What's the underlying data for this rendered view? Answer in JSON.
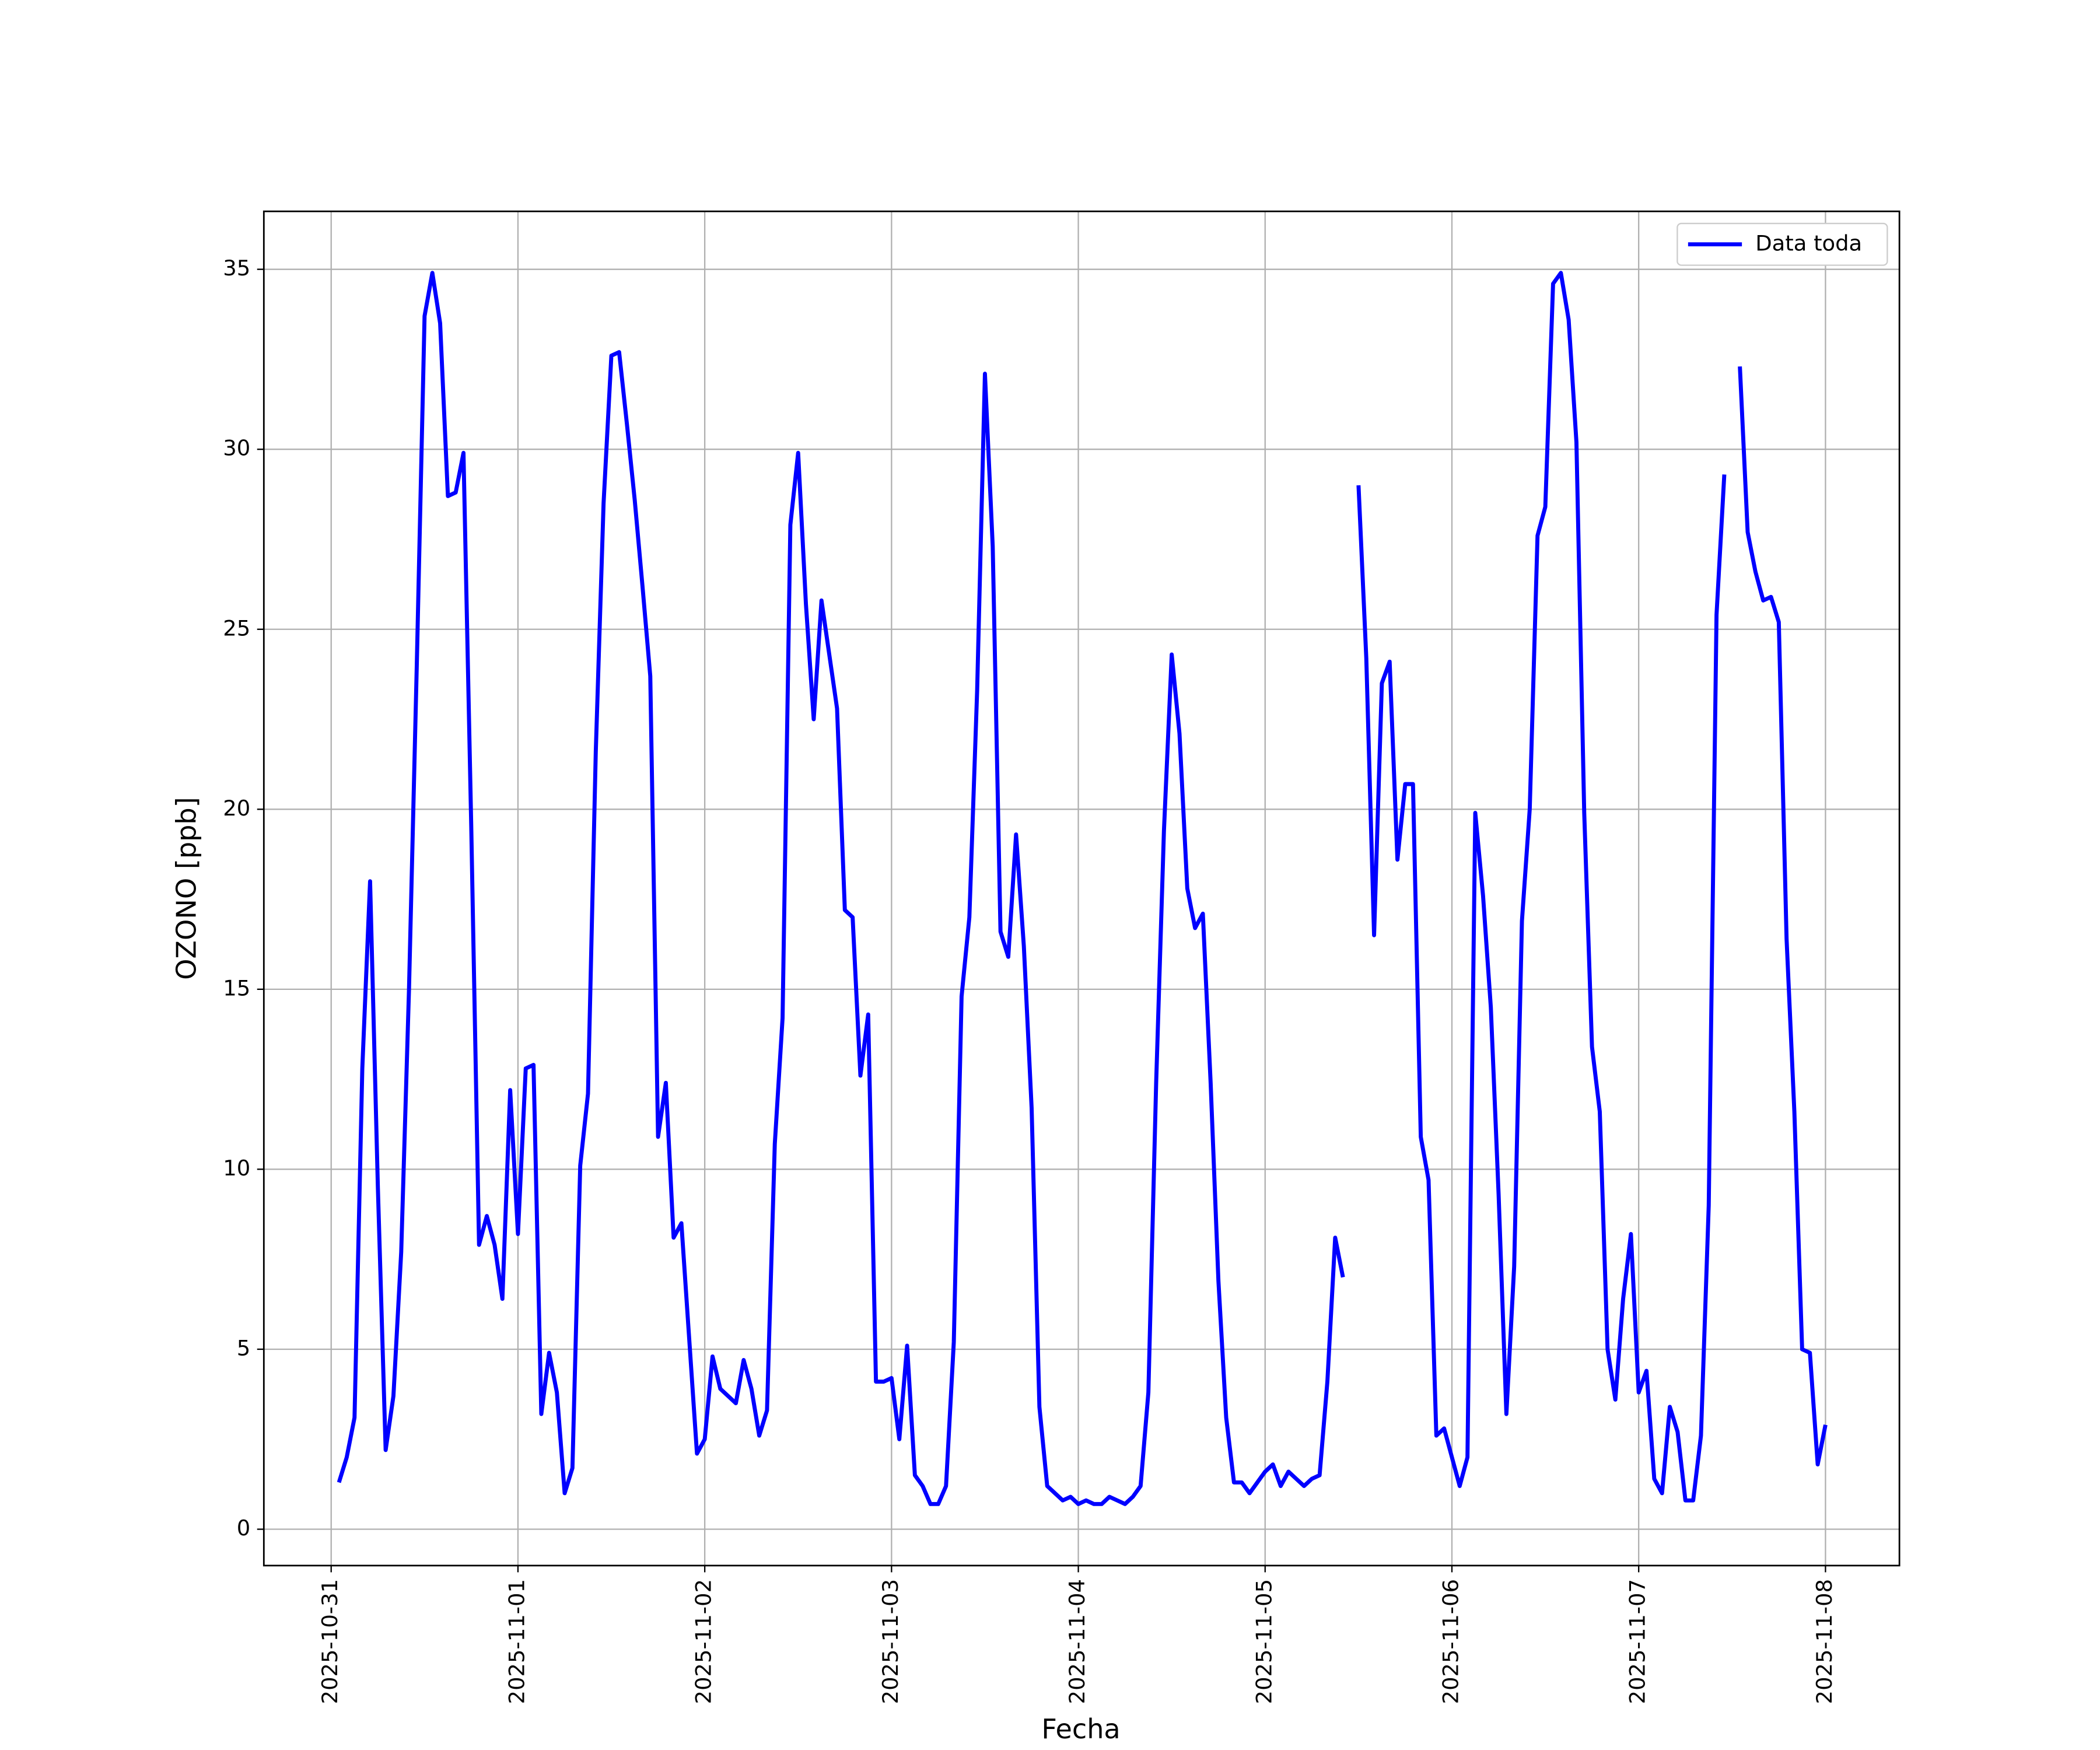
{
  "chart_data": {
    "type": "line",
    "x_label": "Fecha",
    "y_label": "OZONO [ppb]",
    "x": [
      1,
      2,
      3,
      4,
      5,
      6,
      7,
      8,
      9,
      10,
      11,
      12,
      13,
      14,
      15,
      16,
      17,
      18,
      19,
      20,
      21,
      22,
      23,
      24,
      25,
      26,
      27,
      28,
      29,
      30,
      31,
      32,
      33,
      34,
      35,
      36,
      37,
      38,
      39,
      40,
      41,
      42,
      43,
      44,
      45,
      46,
      47,
      48,
      49,
      50,
      51,
      52,
      53,
      54,
      55,
      56,
      57,
      58,
      59,
      60,
      61,
      62,
      63,
      64,
      65,
      66,
      67,
      68,
      69,
      70,
      71,
      72,
      73,
      74,
      75,
      76,
      77,
      78,
      79,
      80,
      81,
      82,
      83,
      84,
      85,
      86,
      87,
      88,
      89,
      90,
      91,
      92,
      93,
      94,
      95,
      96,
      97,
      98,
      99,
      100,
      101,
      102,
      103,
      104,
      105,
      106,
      107,
      108,
      109,
      110,
      111,
      112,
      113,
      114,
      115,
      116,
      117,
      118,
      119,
      120,
      121,
      122,
      123,
      124,
      125,
      126,
      127,
      128,
      129,
      130,
      131,
      132,
      133,
      134,
      135,
      136,
      137,
      138,
      139,
      140,
      141,
      142,
      143,
      144,
      145,
      146,
      147,
      148,
      149,
      150,
      151,
      152,
      153,
      154,
      155,
      156,
      157,
      158,
      159,
      160,
      161,
      162,
      163,
      164,
      165,
      166,
      167,
      168,
      169,
      170,
      171,
      172,
      173,
      174,
      175,
      176,
      177,
      178,
      179,
      180,
      181,
      182,
      183,
      184,
      185,
      186,
      187,
      188,
      189,
      190,
      191,
      192
    ],
    "series": [
      {
        "name": "Data toda",
        "color": "#0000ff",
        "values": [
          1.3,
          2.0,
          3.1,
          12.8,
          18.0,
          9.5,
          2.2,
          3.7,
          7.7,
          15.0,
          24.0,
          33.7,
          34.9,
          33.5,
          28.7,
          28.8,
          29.9,
          19.5,
          7.9,
          8.7,
          7.9,
          6.4,
          12.2,
          8.2,
          12.8,
          12.9,
          3.2,
          4.9,
          3.8,
          1.0,
          1.7,
          10.1,
          12.1,
          21.6,
          28.5,
          32.6,
          32.7,
          30.7,
          28.6,
          26.2,
          23.7,
          10.9,
          12.4,
          8.1,
          8.5,
          5.3,
          2.1,
          2.5,
          4.8,
          3.9,
          3.7,
          3.5,
          4.7,
          3.9,
          2.6,
          3.3,
          10.7,
          14.2,
          27.9,
          29.9,
          25.7,
          22.5,
          25.8,
          24.3,
          22.8,
          17.2,
          17.0,
          12.6,
          14.3,
          4.1,
          4.1,
          4.2,
          2.5,
          5.1,
          1.5,
          1.2,
          0.7,
          0.7,
          1.2,
          5.2,
          14.8,
          17.0,
          23.3,
          32.1,
          27.3,
          16.6,
          15.9,
          19.3,
          16.2,
          11.7,
          3.4,
          1.2,
          1.0,
          0.8,
          0.9,
          0.7,
          0.8,
          0.7,
          0.7,
          0.9,
          0.8,
          0.7,
          0.9,
          1.2,
          3.8,
          12.4,
          19.4,
          24.3,
          22.1,
          17.8,
          16.7,
          17.1,
          12.4,
          6.9,
          3.1,
          1.3,
          1.3,
          1.0,
          1.3,
          1.6,
          1.8,
          1.2,
          1.6,
          1.4,
          1.2,
          1.4,
          1.5,
          4.1,
          8.1,
          7.0,
          null,
          29.0,
          24.2,
          16.5,
          23.5,
          24.1,
          18.6,
          20.7,
          20.7,
          10.9,
          9.7,
          2.6,
          2.8,
          2.0,
          1.2,
          2.0,
          19.9,
          17.6,
          14.5,
          9.3,
          3.2,
          7.3,
          16.9,
          20.0,
          27.6,
          28.4,
          34.6,
          34.9,
          33.6,
          30.2,
          19.9,
          13.4,
          11.6,
          5.0,
          3.6,
          6.4,
          8.2,
          3.8,
          4.4,
          1.4,
          1.0,
          3.4,
          2.7,
          0.8,
          0.8,
          2.6,
          9.0,
          25.4,
          29.3,
          null,
          32.3,
          27.7,
          26.6,
          25.8,
          25.9,
          25.2,
          16.4,
          11.6,
          5.0,
          4.9,
          1.8,
          2.9
        ]
      }
    ],
    "xlim": [
      -8.65,
      201.5
    ],
    "xticks": [
      {
        "value": 0,
        "label": "2025-10-31"
      },
      {
        "value": 24,
        "label": "2025-11-01"
      },
      {
        "value": 48,
        "label": "2025-11-02"
      },
      {
        "value": 72,
        "label": "2025-11-03"
      },
      {
        "value": 96,
        "label": "2025-11-04"
      },
      {
        "value": 120,
        "label": "2025-11-05"
      },
      {
        "value": 144,
        "label": "2025-11-06"
      },
      {
        "value": 168,
        "label": "2025-11-07"
      },
      {
        "value": 192,
        "label": "2025-11-08"
      }
    ],
    "ylim": [
      -1.01,
      36.61
    ],
    "yticks": [
      0,
      5,
      10,
      15,
      20,
      25,
      30,
      35
    ],
    "grid": true,
    "legend": "upper right"
  }
}
